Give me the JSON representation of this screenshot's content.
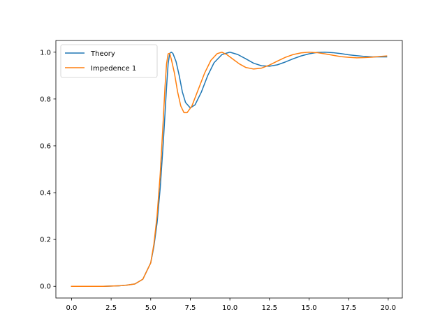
{
  "chart_data": {
    "type": "line",
    "title": "",
    "xlabel": "",
    "ylabel": "",
    "xlim": [
      -0.99,
      20.89
    ],
    "ylim": [
      -0.05,
      1.05
    ],
    "x_ticks": [
      0.0,
      2.5,
      5.0,
      7.5,
      10.0,
      12.5,
      15.0,
      17.5,
      20.0
    ],
    "x_tick_labels": [
      "0.0",
      "2.5",
      "5.0",
      "7.5",
      "10.0",
      "12.5",
      "15.0",
      "17.5",
      "20.0"
    ],
    "y_ticks": [
      0.0,
      0.2,
      0.4,
      0.6,
      0.8,
      1.0
    ],
    "y_tick_labels": [
      "0.0",
      "0.2",
      "0.4",
      "0.6",
      "0.8",
      "1.0"
    ],
    "grid": false,
    "legend_position": "upper-left",
    "series": [
      {
        "name": "Theory",
        "color": "#1f77b4",
        "points": [
          [
            0.0,
            0.0
          ],
          [
            1.0,
            0.0
          ],
          [
            2.0,
            0.0
          ],
          [
            3.0,
            0.002
          ],
          [
            3.5,
            0.005
          ],
          [
            4.0,
            0.01
          ],
          [
            4.5,
            0.03
          ],
          [
            5.0,
            0.1
          ],
          [
            5.2,
            0.17
          ],
          [
            5.4,
            0.27
          ],
          [
            5.6,
            0.42
          ],
          [
            5.8,
            0.62
          ],
          [
            6.0,
            0.85
          ],
          [
            6.1,
            0.95
          ],
          [
            6.2,
            0.995
          ],
          [
            6.3,
            1.0
          ],
          [
            6.4,
            0.995
          ],
          [
            6.6,
            0.96
          ],
          [
            6.8,
            0.9
          ],
          [
            7.0,
            0.83
          ],
          [
            7.2,
            0.785
          ],
          [
            7.5,
            0.762
          ],
          [
            7.8,
            0.775
          ],
          [
            8.2,
            0.83
          ],
          [
            8.6,
            0.9
          ],
          [
            9.0,
            0.955
          ],
          [
            9.5,
            0.99
          ],
          [
            10.0,
            1.0
          ],
          [
            10.5,
            0.99
          ],
          [
            11.0,
            0.972
          ],
          [
            11.5,
            0.953
          ],
          [
            12.0,
            0.942
          ],
          [
            12.5,
            0.94
          ],
          [
            13.0,
            0.946
          ],
          [
            13.5,
            0.958
          ],
          [
            14.0,
            0.972
          ],
          [
            14.5,
            0.984
          ],
          [
            15.0,
            0.993
          ],
          [
            15.5,
            0.999
          ],
          [
            16.0,
            1.0
          ],
          [
            16.5,
            0.998
          ],
          [
            17.0,
            0.994
          ],
          [
            17.5,
            0.989
          ],
          [
            18.0,
            0.985
          ],
          [
            18.5,
            0.982
          ],
          [
            19.0,
            0.98
          ],
          [
            19.5,
            0.98
          ],
          [
            19.9,
            0.98
          ]
        ]
      },
      {
        "name": "Impedence 1",
        "color": "#ff7f0e",
        "points": [
          [
            0.0,
            0.0
          ],
          [
            1.0,
            0.0
          ],
          [
            2.0,
            0.0
          ],
          [
            3.0,
            0.002
          ],
          [
            3.5,
            0.005
          ],
          [
            4.0,
            0.01
          ],
          [
            4.5,
            0.03
          ],
          [
            5.0,
            0.1
          ],
          [
            5.2,
            0.18
          ],
          [
            5.4,
            0.3
          ],
          [
            5.6,
            0.48
          ],
          [
            5.8,
            0.72
          ],
          [
            5.9,
            0.85
          ],
          [
            6.0,
            0.95
          ],
          [
            6.1,
            0.993
          ],
          [
            6.2,
            0.995
          ],
          [
            6.3,
            0.97
          ],
          [
            6.5,
            0.91
          ],
          [
            6.7,
            0.83
          ],
          [
            6.9,
            0.77
          ],
          [
            7.1,
            0.742
          ],
          [
            7.3,
            0.742
          ],
          [
            7.6,
            0.77
          ],
          [
            8.0,
            0.84
          ],
          [
            8.4,
            0.91
          ],
          [
            8.8,
            0.965
          ],
          [
            9.2,
            0.994
          ],
          [
            9.5,
            1.0
          ],
          [
            9.8,
            0.99
          ],
          [
            10.2,
            0.97
          ],
          [
            10.6,
            0.95
          ],
          [
            11.0,
            0.935
          ],
          [
            11.5,
            0.928
          ],
          [
            12.0,
            0.932
          ],
          [
            12.5,
            0.945
          ],
          [
            13.0,
            0.962
          ],
          [
            13.5,
            0.978
          ],
          [
            14.0,
            0.99
          ],
          [
            14.5,
            0.997
          ],
          [
            15.0,
            1.0
          ],
          [
            15.5,
            0.998
          ],
          [
            16.0,
            0.993
          ],
          [
            16.5,
            0.987
          ],
          [
            17.0,
            0.981
          ],
          [
            17.5,
            0.978
          ],
          [
            18.0,
            0.976
          ],
          [
            18.5,
            0.977
          ],
          [
            19.0,
            0.979
          ],
          [
            19.5,
            0.982
          ],
          [
            19.9,
            0.984
          ]
        ]
      }
    ]
  }
}
